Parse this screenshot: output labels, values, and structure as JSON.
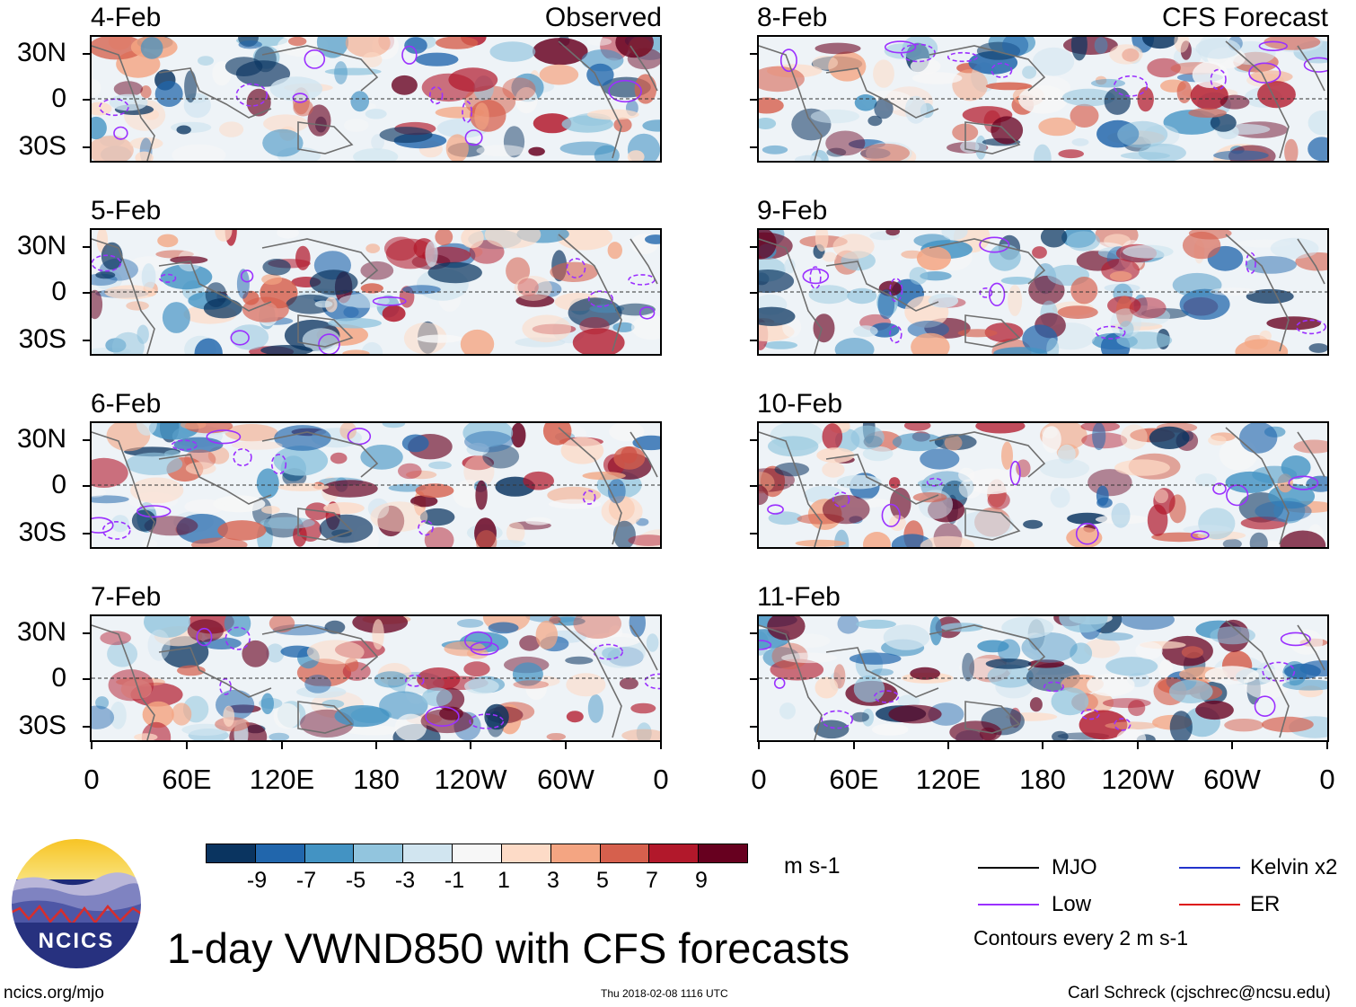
{
  "observed": {
    "header": "Observed",
    "panels": [
      "4-Feb",
      "5-Feb",
      "6-Feb",
      "7-Feb"
    ]
  },
  "forecast": {
    "header": "CFS Forecast",
    "panels": [
      "8-Feb",
      "9-Feb",
      "10-Feb",
      "11-Feb"
    ]
  },
  "lat_labels": [
    "30N",
    "0",
    "30S"
  ],
  "lon_labels": [
    "0",
    "60E",
    "120E",
    "180",
    "120W",
    "60W",
    "0"
  ],
  "colorbar": {
    "colors": [
      "#0a3460",
      "#2166ac",
      "#4393c3",
      "#92c5de",
      "#d1e5f0",
      "#f7f7f7",
      "#fddbc7",
      "#f4a582",
      "#d6604d",
      "#b2182b",
      "#67001f"
    ],
    "labels": [
      "-9",
      "-7",
      "-5",
      "-3",
      "-1",
      "1",
      "3",
      "5",
      "7",
      "9"
    ],
    "unit": "m s-1"
  },
  "legend": {
    "items": [
      {
        "label": "MJO",
        "color": "#000000"
      },
      {
        "label": "Kelvin x2",
        "color": "#2233cc"
      },
      {
        "label": "Low",
        "color": "#9b30ff"
      },
      {
        "label": "ER",
        "color": "#dd1111"
      }
    ],
    "contours_note": "Contours every 2 m s-1"
  },
  "logo": {
    "text": "NCICS"
  },
  "title": "1-day VWND850 with CFS forecasts",
  "footer": {
    "left": "ncics.org/mjo",
    "center": "Thu 2018-02-08 1116 UTC",
    "right": "Carl Schreck (cjschrec@ncsu.edu)"
  }
}
